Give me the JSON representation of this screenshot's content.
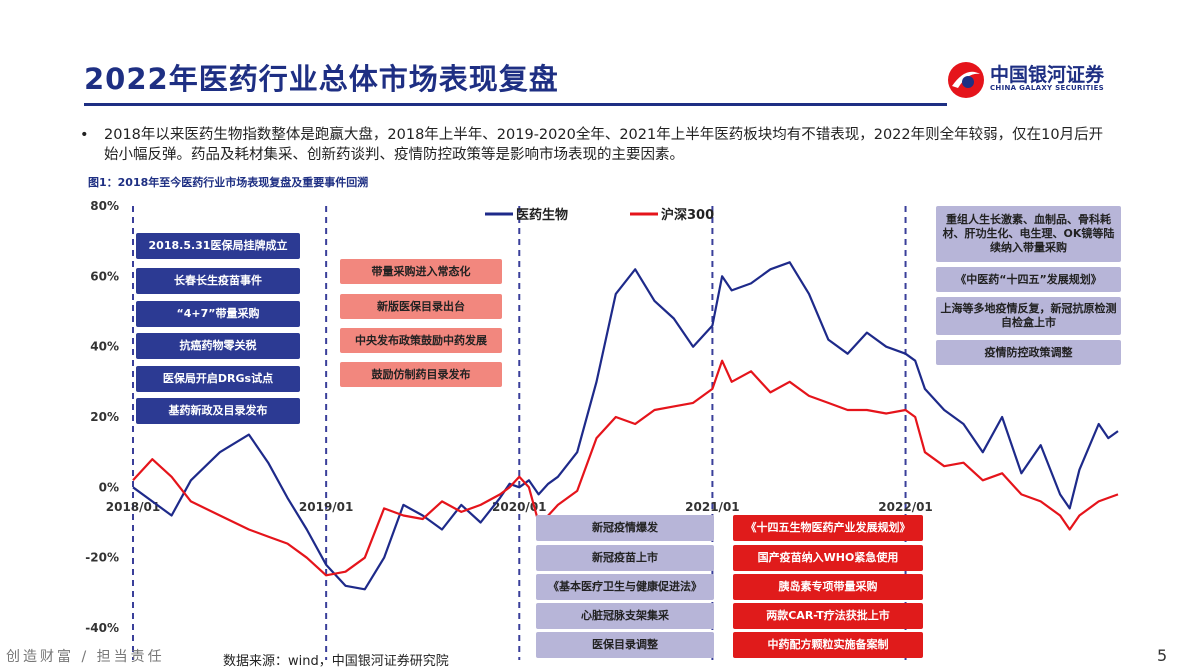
{
  "header": {
    "title": "2022年医药行业总体市场表现复盘",
    "logo_cn": "中国银河证券",
    "logo_en": "CHINA GALAXY SECURITIES"
  },
  "bullet": {
    "marker": "•",
    "text": "2018年以来医药生物指数整体是跑赢大盘，2018年上半年、2019-2020全年、2021年上半年医药板块均有不错表现，2022年则全年较弱，仅在10月后开始小幅反弹。药品及耗材集采、创新药谈判、疫情防控政策等是影响市场表现的主要因素。"
  },
  "figure_title": "图1：2018年至今医药行业市场表现复盘及重要事件回溯",
  "chart_data": {
    "type": "line",
    "y_ticks": [
      "80%",
      "60%",
      "40%",
      "20%",
      "0%",
      "-20%",
      "-40%"
    ],
    "x_ticks": [
      "2018/01",
      "2019/01",
      "2020/01",
      "2021/01",
      "2022/01"
    ],
    "ylim": [
      -40,
      80
    ],
    "xlim": [
      0,
      5.1
    ],
    "grid": false,
    "legend_position": "top-center",
    "series": [
      {
        "name": "医药生物",
        "color": "#1e2a8a",
        "x": [
          0,
          0.1,
          0.2,
          0.3,
          0.45,
          0.6,
          0.7,
          0.8,
          0.9,
          1.0,
          1.1,
          1.2,
          1.3,
          1.4,
          1.5,
          1.6,
          1.7,
          1.8,
          1.9,
          1.95,
          2.0,
          2.05,
          2.1,
          2.15,
          2.2,
          2.3,
          2.4,
          2.5,
          2.6,
          2.7,
          2.8,
          2.9,
          3.0,
          3.05,
          3.1,
          3.2,
          3.3,
          3.4,
          3.5,
          3.6,
          3.7,
          3.8,
          3.9,
          4.0,
          4.05,
          4.1,
          4.2,
          4.3,
          4.4,
          4.5,
          4.6,
          4.7,
          4.8,
          4.85,
          4.9,
          5.0,
          5.05,
          5.1
        ],
        "values": [
          0,
          -4,
          -8,
          2,
          10,
          15,
          7,
          -3,
          -12,
          -22,
          -28,
          -29,
          -20,
          -5,
          -8,
          -12,
          -5,
          -10,
          -3,
          1,
          0,
          2,
          -2,
          1,
          3,
          10,
          30,
          55,
          62,
          53,
          48,
          40,
          46,
          60,
          56,
          58,
          62,
          64,
          55,
          42,
          38,
          44,
          40,
          38,
          36,
          28,
          22,
          18,
          10,
          20,
          4,
          12,
          -2,
          -6,
          5,
          18,
          14,
          16
        ]
      },
      {
        "name": "沪深300",
        "color": "#e5141b",
        "x": [
          0,
          0.1,
          0.2,
          0.3,
          0.45,
          0.6,
          0.7,
          0.8,
          0.9,
          1.0,
          1.1,
          1.2,
          1.3,
          1.4,
          1.5,
          1.6,
          1.7,
          1.8,
          1.9,
          1.95,
          2.0,
          2.05,
          2.1,
          2.15,
          2.2,
          2.3,
          2.4,
          2.5,
          2.6,
          2.7,
          2.8,
          2.9,
          3.0,
          3.05,
          3.1,
          3.2,
          3.3,
          3.4,
          3.5,
          3.6,
          3.7,
          3.8,
          3.9,
          4.0,
          4.05,
          4.1,
          4.2,
          4.3,
          4.4,
          4.5,
          4.6,
          4.7,
          4.8,
          4.85,
          4.9,
          5.0,
          5.05,
          5.1
        ],
        "values": [
          2,
          8,
          3,
          -4,
          -8,
          -12,
          -14,
          -16,
          -20,
          -25,
          -24,
          -20,
          -6,
          -8,
          -9,
          -4,
          -7,
          -5,
          -2,
          0,
          3,
          0,
          -10,
          -8,
          -5,
          -1,
          14,
          20,
          18,
          22,
          23,
          24,
          28,
          36,
          30,
          33,
          27,
          30,
          26,
          24,
          22,
          22,
          21,
          22,
          20,
          10,
          6,
          7,
          2,
          4,
          -2,
          -4,
          -8,
          -12,
          -8,
          -4,
          -3,
          -2
        ]
      }
    ],
    "period_markers": [
      "2018/01",
      "2019/01",
      "2020/01",
      "2021/01",
      "2022/01"
    ],
    "annotations": {
      "g2018": [
        "2018.5.31医保局挂牌成立",
        "长春长生疫苗事件",
        "“4+7”带量采购",
        "抗癌药物零关税",
        "医保局开启DRGs试点",
        "基药新政及目录发布"
      ],
      "g2019": [
        "带量采购进入常态化",
        "新版医保目录出台",
        "中央发布政策鼓励中药发展",
        "鼓励仿制药目录发布"
      ],
      "g2020": [
        "新冠疫情爆发",
        "新冠疫苗上市",
        "《基本医疗卫生与健康促进法》",
        "心脏冠脉支架集采",
        "医保目录调整"
      ],
      "g2021": [
        "《十四五生物医药产业发展规划》",
        "国产疫苗纳入WHO紧急使用",
        "胰岛素专项带量采购",
        "两款CAR-T疗法获批上市",
        "中药配方颗粒实施备案制"
      ],
      "g2022": [
        "重组人生长激素、血制品、骨科耗材、肝功生化、电生理、OK镜等陆续纳入带量采购",
        "《中医药“十四五”发展规划》",
        "上海等多地疫情反复，新冠抗原检测自检盒上市",
        "疫情防控政策调整"
      ]
    }
  },
  "footer": {
    "slogan": "创造财富 / 担当责任",
    "source": "数据来源：wind，中国银河证券研究院",
    "page": "5"
  }
}
